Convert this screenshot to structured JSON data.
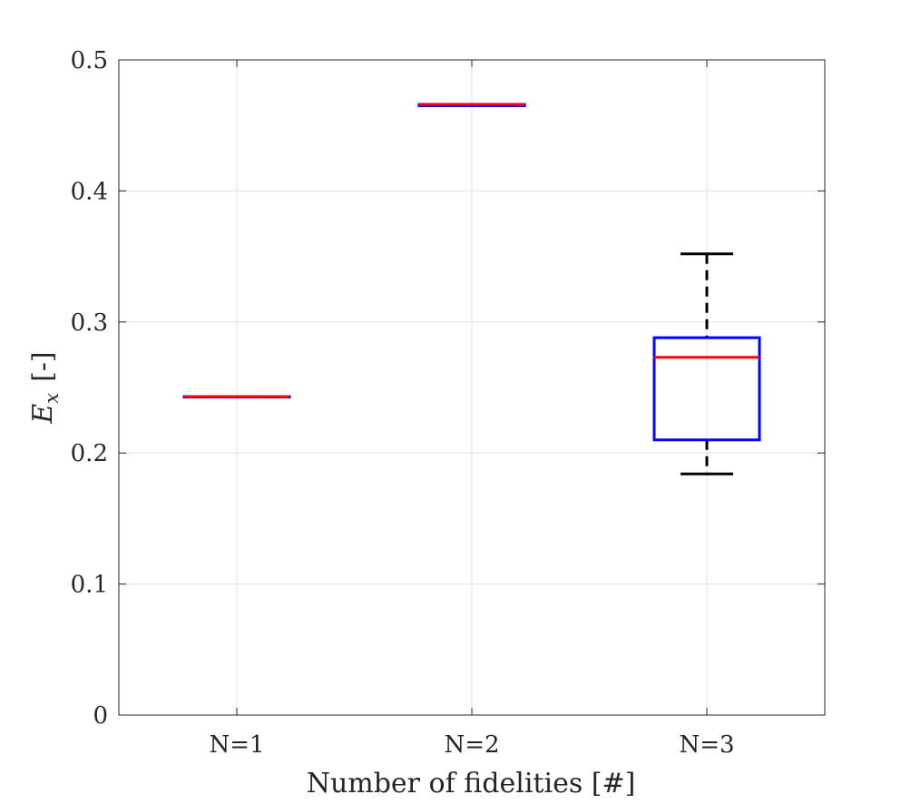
{
  "chart_data": {
    "type": "boxplot",
    "xlabel": "Number of fidelities [#]",
    "ylabel": {
      "symbol": "E",
      "subscript": "x",
      "unit": "[-]"
    },
    "ylim": [
      0,
      0.5
    ],
    "yticks": [
      "0",
      "0.1",
      "0.2",
      "0.3",
      "0.4",
      "0.5"
    ],
    "grid": true,
    "categories": [
      "N=1",
      "N=2",
      "N=3"
    ],
    "boxes": [
      {
        "label": "N=1",
        "lower_whisker": 0.243,
        "q1": 0.243,
        "median": 0.243,
        "q3": 0.243,
        "upper_whisker": 0.243
      },
      {
        "label": "N=2",
        "lower_whisker": 0.465,
        "q1": 0.465,
        "median": 0.466,
        "q3": 0.466,
        "upper_whisker": 0.466
      },
      {
        "label": "N=3",
        "lower_whisker": 0.184,
        "q1": 0.21,
        "median": 0.273,
        "q3": 0.288,
        "upper_whisker": 0.352
      }
    ],
    "colors": {
      "box": "#0000ff",
      "median": "#ff0000",
      "whisker": "#000000",
      "grid": "#e0e0e0",
      "axis": "#262626"
    }
  }
}
